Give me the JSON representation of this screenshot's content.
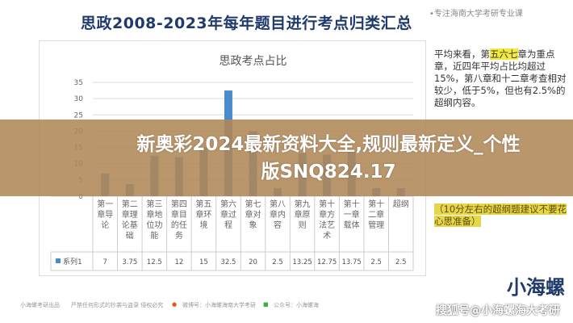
{
  "header": {
    "title": "思政2008-2023年每年题目进行考点归类汇总",
    "watermark": "•专注海南大学考研专业课"
  },
  "chart_data": {
    "type": "bar",
    "title": "思政考点占比",
    "categories": [
      "第一章导论",
      "第二章理论基础",
      "第三章地位功能",
      "第四章目的任务",
      "第五章环境",
      "第六章过程",
      "第七章对象",
      "第八章内容",
      "第九章原则",
      "第十章方法艺术",
      "第十一章载体",
      "第十二章管理",
      "超纲"
    ],
    "series": [
      {
        "name": "系列1",
        "values": [
          7,
          3.75,
          12.5,
          12,
          15,
          32.5,
          20,
          2.5,
          13.25,
          12.75,
          13.75,
          2.5,
          2.5
        ]
      }
    ],
    "ylim": [
      0,
      35
    ],
    "yticks": [
      0,
      5,
      10,
      15,
      20,
      25,
      30,
      35
    ],
    "grid": true,
    "data_table": true,
    "colors": {
      "bar": "#4a8ccb",
      "highlight": "#4a8ccb"
    }
  },
  "side_note": {
    "p1": "平均来看，第",
    "hl": "五六七",
    "p2": "章为重点章，近四年平均占比均超过15%，第八章和十二章考查相对较少，低于5%，但也有2.5%的超纲内容。",
    "hl2": "（10分左右的超纲题建议不要花心思准备）"
  },
  "banner": {
    "line1": "新奥彩2024最新资料大全,规则最新定义_个性",
    "line2": "版SNQ824.17"
  },
  "footer": {
    "f1": "小海螺考研出品",
    "f2": "严禁任何形式的抄袭与盗录 侵权必究",
    "f3": "微博号：小海螺海南大学考研",
    "f4": "公众号：小海螺海",
    "logo": "小海螺",
    "sohu": "搜狐号@小海螺海大考研"
  }
}
